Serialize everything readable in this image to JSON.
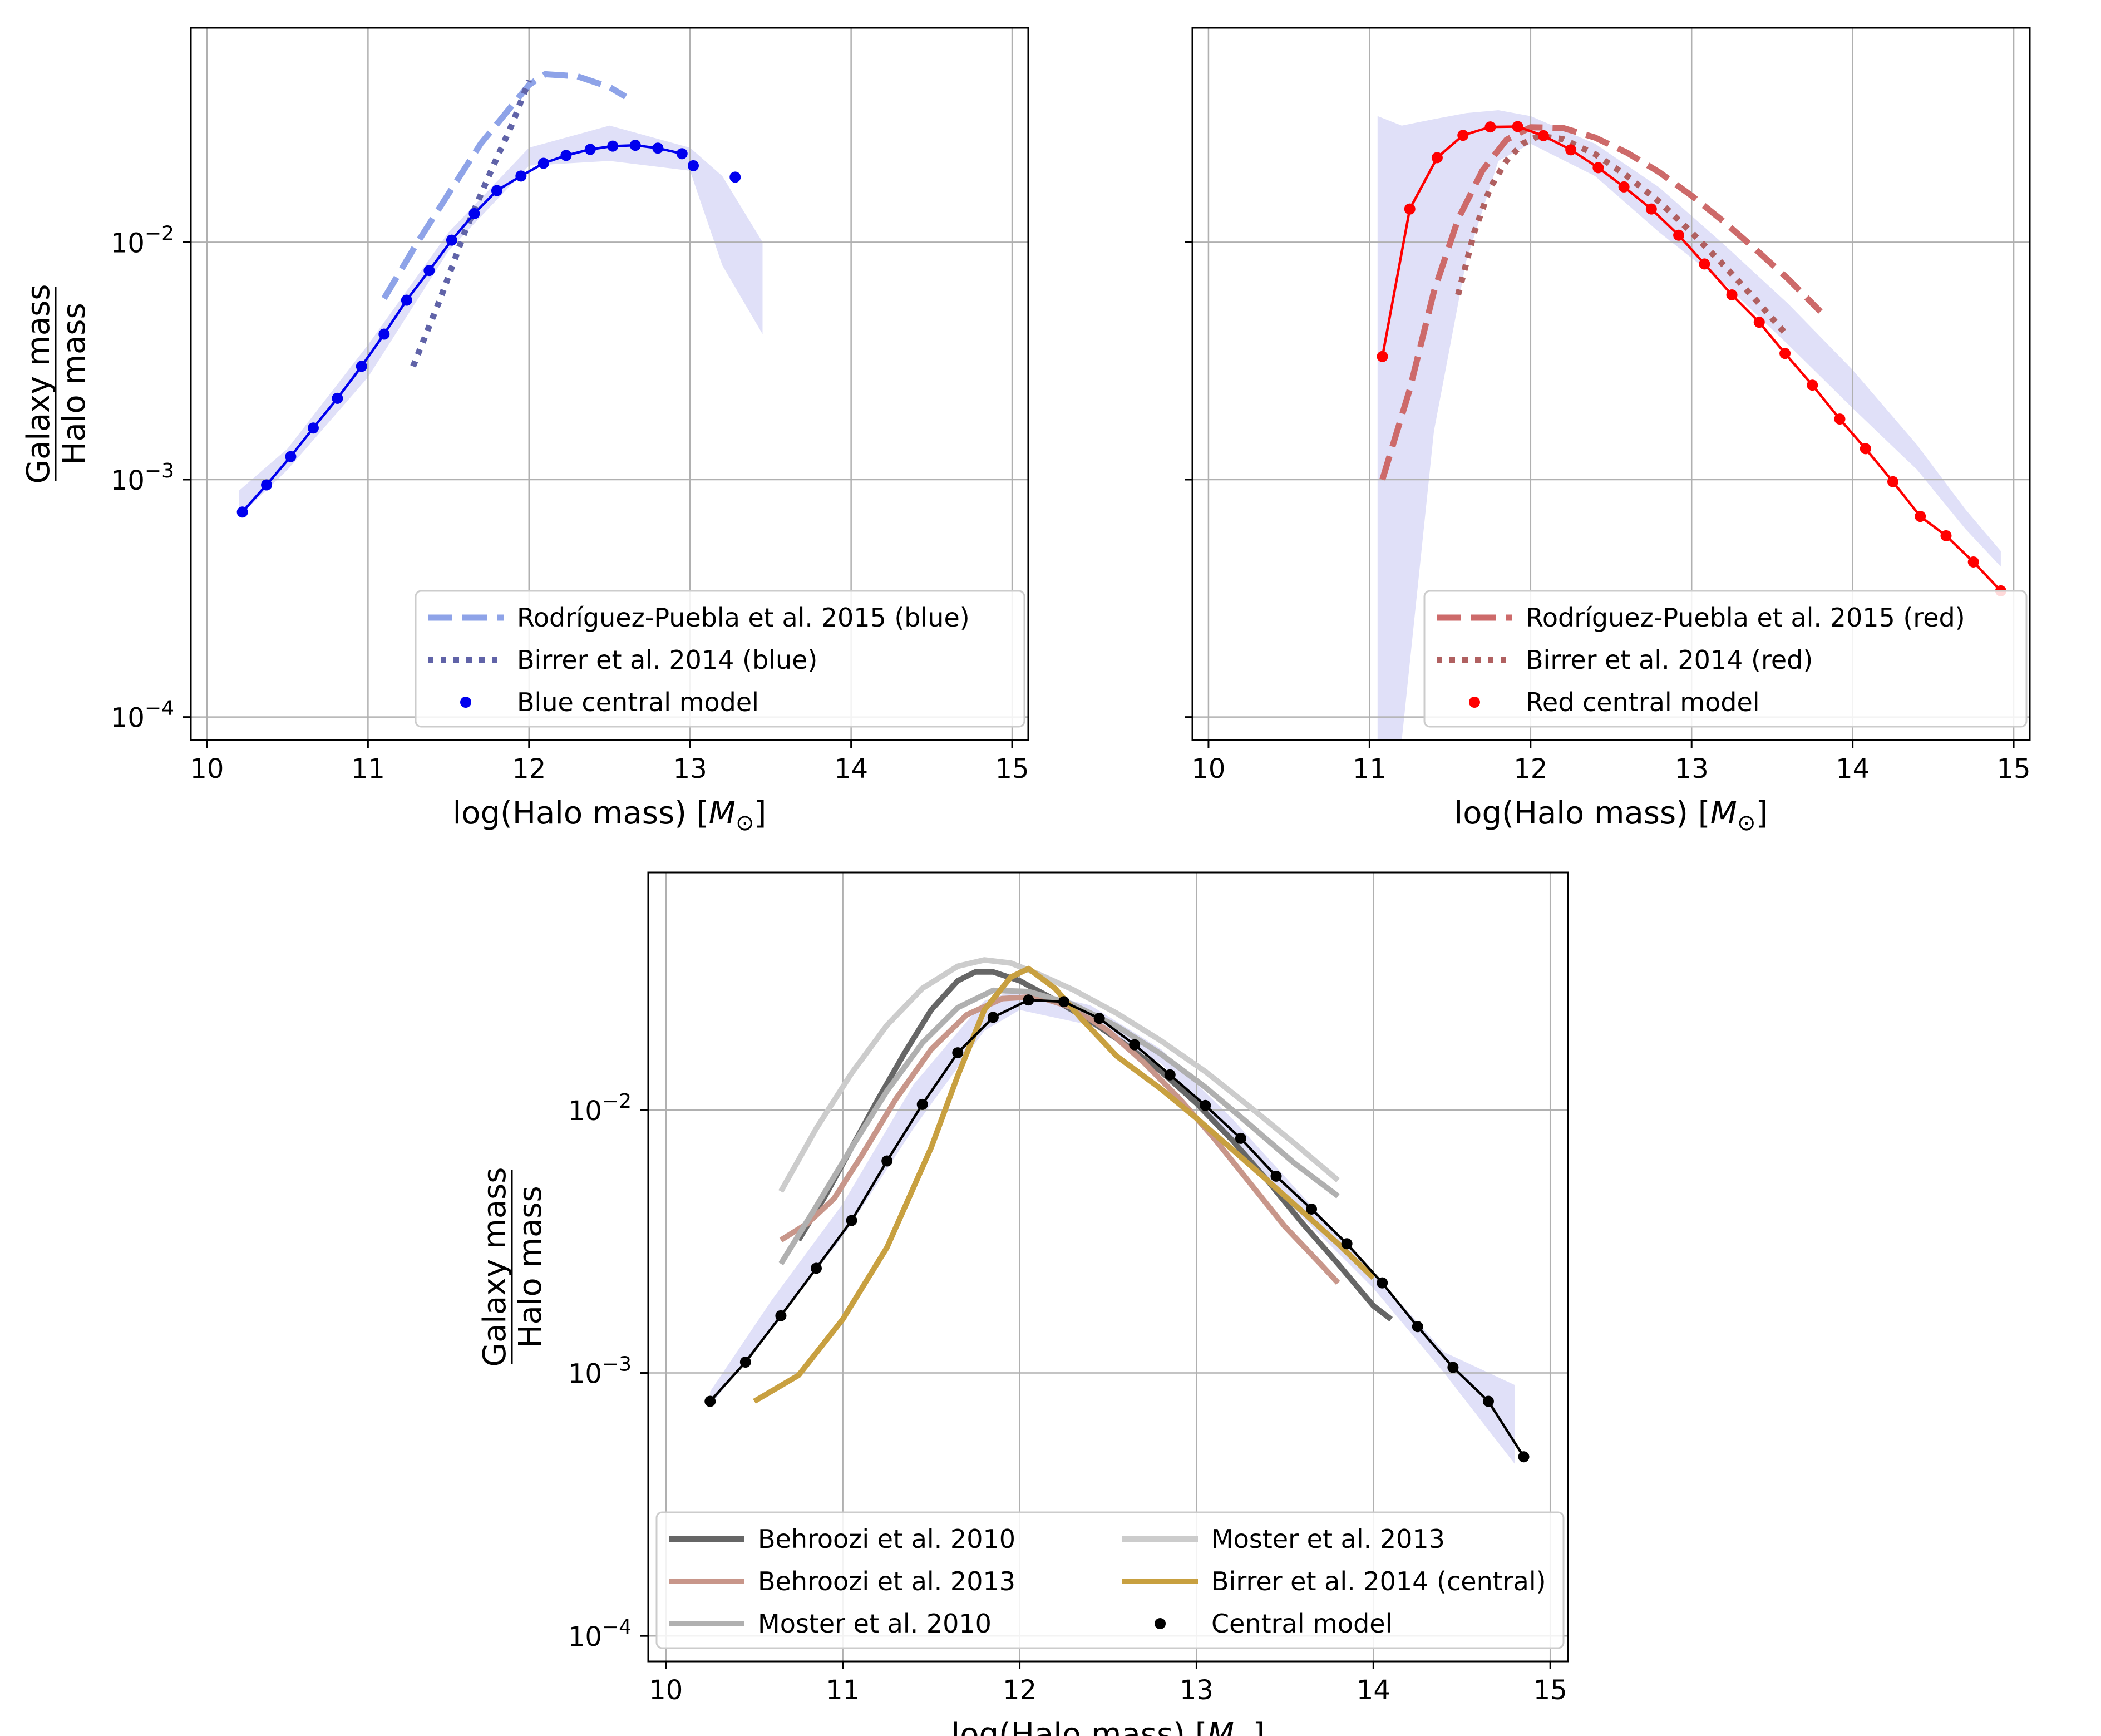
{
  "chart_data": [
    {
      "type": "line",
      "id": "blue",
      "xlabel": "log(Halo mass) [",
      "xlabel_unit": "M",
      "xlabel_sub": "⊙",
      "xlabel_end": "]",
      "ylabel_top": "Galaxy mass",
      "ylabel_bottom": "Halo mass",
      "xlim": [
        9.9,
        15.1
      ],
      "ylog": true,
      "ylim": [
        8e-05,
        0.08
      ],
      "grid": true,
      "xticks": [
        10,
        11,
        12,
        13,
        14,
        15
      ],
      "yticks": [
        {
          "value": 0.01,
          "base": "10",
          "exp": "−2"
        },
        {
          "value": 0.001,
          "base": "10",
          "exp": "−3"
        },
        {
          "value": 0.0001,
          "base": "10",
          "exp": "−4"
        }
      ],
      "band": {
        "color": "#e0e0f8",
        "x": [
          10.2,
          10.5,
          11.0,
          11.5,
          12.0,
          12.5,
          13.0,
          13.2,
          13.45
        ],
        "upper": [
          0.0009,
          0.00135,
          0.0037,
          0.011,
          0.025,
          0.031,
          0.025,
          0.019,
          0.01
        ],
        "lower": [
          0.0007,
          0.0011,
          0.0027,
          0.0092,
          0.021,
          0.022,
          0.02,
          0.008,
          0.0041
        ]
      },
      "series": [
        {
          "name": "Rodríguez-Puebla et al. 2015 (blue)",
          "style": "dashed",
          "color": "#8ea3e8",
          "x": [
            11.1,
            11.3,
            11.5,
            11.7,
            11.9,
            12.0,
            12.1,
            12.3,
            12.5,
            12.6
          ],
          "y": [
            0.0058,
            0.0098,
            0.016,
            0.026,
            0.038,
            0.046,
            0.051,
            0.05,
            0.045,
            0.041
          ]
        },
        {
          "name": "Birrer et al. 2014 (blue)",
          "style": "dotted",
          "color": "#6063a8",
          "x": [
            11.28,
            11.45,
            11.6,
            11.75,
            11.9,
            12.0
          ],
          "y": [
            0.003,
            0.0058,
            0.011,
            0.019,
            0.032,
            0.048
          ]
        },
        {
          "name": "Blue central model",
          "style": "markers-line",
          "color": "#0000ee",
          "x": [
            10.22,
            10.37,
            10.52,
            10.66,
            10.81,
            10.96,
            11.1,
            11.24,
            11.38,
            11.52,
            11.66,
            11.8,
            11.95,
            12.09,
            12.23,
            12.38,
            12.52,
            12.66,
            12.8,
            12.95,
            13.09,
            13.3
          ],
          "y": [
            0.00073,
            0.00095,
            0.00125,
            0.00165,
            0.0022,
            0.003,
            0.0041,
            0.0057,
            0.0076,
            0.0102,
            0.0132,
            0.0165,
            0.019,
            0.0215,
            0.0232,
            0.0246,
            0.0254,
            0.0256,
            0.0249,
            0.0236,
            0.0235,
            0.0212
          ],
          "connected_count": 20,
          "extra_points": [
            [
              13.02,
              0.021
            ],
            [
              13.28,
              0.0188
            ]
          ]
        }
      ]
    },
    {
      "type": "line",
      "id": "red",
      "xlabel": "log(Halo mass) [",
      "xlabel_unit": "M",
      "xlabel_sub": "⊙",
      "xlabel_end": "]",
      "xlim": [
        9.9,
        15.1
      ],
      "ylog": true,
      "ylim": [
        8e-05,
        0.08
      ],
      "grid": true,
      "xticks": [
        10,
        11,
        12,
        13,
        14,
        15
      ],
      "band": {
        "color": "#e0e0f8",
        "x": [
          11.05,
          11.2,
          11.4,
          11.6,
          11.8,
          12.0,
          12.4,
          12.8,
          13.2,
          13.6,
          14.0,
          14.4,
          14.7,
          14.92
        ],
        "upper": [
          0.034,
          0.031,
          0.033,
          0.035,
          0.036,
          0.034,
          0.026,
          0.017,
          0.0098,
          0.0055,
          0.0029,
          0.0014,
          0.00075,
          0.0005
        ],
        "lower": [
          8e-05,
          8e-05,
          0.0016,
          0.0083,
          0.022,
          0.026,
          0.019,
          0.011,
          0.0067,
          0.0037,
          0.002,
          0.0011,
          0.00062,
          0.00043
        ]
      },
      "series": [
        {
          "name": "Rodríguez-Puebla et al. 2015 (red)",
          "style": "dashed",
          "color": "#cd6a6a",
          "x": [
            11.08,
            11.25,
            11.4,
            11.55,
            11.7,
            11.85,
            12.0,
            12.2,
            12.4,
            12.6,
            12.8,
            13.0,
            13.2,
            13.4,
            13.6,
            13.8
          ],
          "y": [
            0.001,
            0.0024,
            0.0062,
            0.0125,
            0.02,
            0.027,
            0.0305,
            0.0303,
            0.0276,
            0.0238,
            0.0197,
            0.0157,
            0.0122,
            0.0093,
            0.007,
            0.0051
          ]
        },
        {
          "name": "Birrer et al. 2014 (red)",
          "style": "dotted",
          "color": "#b06060",
          "x": [
            11.55,
            11.65,
            11.75,
            11.85,
            11.95,
            12.05,
            12.2,
            12.4,
            12.6,
            12.8,
            13.0,
            13.2,
            13.4,
            13.6
          ],
          "y": [
            0.006,
            0.011,
            0.017,
            0.022,
            0.026,
            0.028,
            0.0272,
            0.0235,
            0.019,
            0.0148,
            0.011,
            0.008,
            0.0057,
            0.004
          ]
        },
        {
          "name": "Red central model",
          "style": "markers-line",
          "color": "#ff0000",
          "x": [
            11.08,
            11.25,
            11.42,
            11.58,
            11.75,
            11.92,
            12.08,
            12.25,
            12.42,
            12.58,
            12.75,
            12.92,
            13.08,
            13.25,
            13.42,
            13.58,
            13.75,
            13.92,
            14.08,
            14.25,
            14.42,
            14.58,
            14.75,
            14.92
          ],
          "y": [
            0.0033,
            0.0138,
            0.0227,
            0.0282,
            0.0306,
            0.0307,
            0.0281,
            0.0245,
            0.0206,
            0.0171,
            0.0138,
            0.0107,
            0.0081,
            0.006,
            0.0046,
            0.0034,
            0.0025,
            0.0018,
            0.00135,
            0.00098,
            0.0007,
            0.00058,
            0.00045,
            0.00034
          ]
        }
      ]
    },
    {
      "type": "line",
      "id": "central",
      "xlabel": "log(Halo mass) [",
      "xlabel_unit": "M",
      "xlabel_sub": "⊙",
      "xlabel_end": "]",
      "ylabel_top": "Galaxy mass",
      "ylabel_bottom": "Halo mass",
      "xlim": [
        9.9,
        15.1
      ],
      "ylog": true,
      "ylim": [
        8e-05,
        0.08
      ],
      "grid": true,
      "xticks": [
        10,
        11,
        12,
        13,
        14,
        15
      ],
      "yticks": [
        {
          "value": 0.01,
          "base": "10",
          "exp": "−2"
        },
        {
          "value": 0.001,
          "base": "10",
          "exp": "−3"
        },
        {
          "value": 0.0001,
          "base": "10",
          "exp": "−4"
        }
      ],
      "band": {
        "color": "#e0e0f8",
        "x": [
          10.25,
          10.6,
          11.0,
          11.4,
          11.8,
          12.0,
          12.4,
          12.8,
          13.2,
          13.6,
          14.0,
          14.4,
          14.8
        ],
        "upper": [
          0.00085,
          0.0019,
          0.0044,
          0.0125,
          0.026,
          0.029,
          0.025,
          0.017,
          0.0093,
          0.0047,
          0.0024,
          0.0012,
          0.0009
        ],
        "lower": [
          0.00075,
          0.0015,
          0.0033,
          0.0085,
          0.02,
          0.024,
          0.021,
          0.015,
          0.0078,
          0.0039,
          0.0021,
          0.001,
          0.00045
        ]
      },
      "series": [
        {
          "name": "Behroozi et al. 2010",
          "style": "solid",
          "color": "#666666",
          "x": [
            10.75,
            10.9,
            11.05,
            11.2,
            11.35,
            11.5,
            11.65,
            11.75,
            11.85,
            12.0,
            12.2,
            12.4,
            12.6,
            12.8,
            13.0,
            13.2,
            13.4,
            13.6,
            13.8,
            14.0,
            14.1
          ],
          "y": [
            0.0032,
            0.0047,
            0.0072,
            0.011,
            0.0165,
            0.024,
            0.031,
            0.0335,
            0.0335,
            0.031,
            0.0262,
            0.0218,
            0.0177,
            0.014,
            0.0106,
            0.0077,
            0.0054,
            0.0037,
            0.0026,
            0.0018,
            0.0016
          ]
        },
        {
          "name": "Behroozi et al. 2013",
          "style": "solid",
          "color": "#c8968a",
          "x": [
            10.65,
            10.8,
            10.95,
            11.1,
            11.3,
            11.5,
            11.7,
            11.9,
            12.1,
            12.3,
            12.5,
            12.7,
            12.9,
            13.1,
            13.3,
            13.5,
            13.7,
            13.8
          ],
          "y": [
            0.0032,
            0.0037,
            0.0046,
            0.0066,
            0.011,
            0.017,
            0.023,
            0.0265,
            0.027,
            0.0245,
            0.02,
            0.0152,
            0.0111,
            0.0078,
            0.0053,
            0.0036,
            0.0026,
            0.0022
          ]
        },
        {
          "name": "Moster et al. 2010",
          "style": "solid",
          "color": "#b0b0b0",
          "x": [
            10.65,
            10.85,
            11.05,
            11.25,
            11.45,
            11.65,
            11.85,
            12.05,
            12.3,
            12.55,
            12.8,
            13.05,
            13.3,
            13.55,
            13.8
          ],
          "y": [
            0.0026,
            0.0043,
            0.0072,
            0.0118,
            0.018,
            0.0245,
            0.0285,
            0.0282,
            0.0252,
            0.0208,
            0.0163,
            0.0122,
            0.0088,
            0.0063,
            0.0047
          ]
        },
        {
          "name": "Moster et al. 2013",
          "style": "solid",
          "color": "#cccccc",
          "x": [
            10.65,
            10.85,
            11.05,
            11.25,
            11.45,
            11.65,
            11.8,
            11.95,
            12.1,
            12.3,
            12.55,
            12.8,
            13.05,
            13.3,
            13.55,
            13.8
          ],
          "y": [
            0.0049,
            0.0085,
            0.0138,
            0.021,
            0.029,
            0.0352,
            0.0372,
            0.0362,
            0.033,
            0.0287,
            0.0233,
            0.0183,
            0.014,
            0.0103,
            0.0075,
            0.0054
          ]
        },
        {
          "name": "Birrer et al. 2014 (central)",
          "style": "solid",
          "color": "#c8a040",
          "x": [
            10.5,
            10.75,
            11.0,
            11.25,
            11.5,
            11.65,
            11.8,
            11.95,
            12.05,
            12.2,
            12.35,
            12.55,
            12.8,
            13.0,
            13.2,
            13.4,
            13.6,
            13.8,
            14.0
          ],
          "y": [
            0.00078,
            0.00098,
            0.0016,
            0.003,
            0.0072,
            0.0135,
            0.024,
            0.032,
            0.0345,
            0.029,
            0.0222,
            0.016,
            0.012,
            0.0093,
            0.0071,
            0.0054,
            0.0041,
            0.0031,
            0.0023
          ]
        },
        {
          "name": "Central model",
          "style": "markers-line",
          "color": "#000000",
          "x": [
            10.25,
            10.45,
            10.65,
            10.85,
            11.05,
            11.25,
            11.45,
            11.65,
            11.85,
            12.05,
            12.25,
            12.45,
            12.65,
            12.85,
            13.05,
            13.25,
            13.45,
            13.65,
            13.85,
            14.05,
            14.25,
            14.45,
            14.65,
            14.85
          ],
          "y": [
            0.00078,
            0.0011,
            0.00165,
            0.0025,
            0.0038,
            0.0064,
            0.0105,
            0.0165,
            0.0225,
            0.0262,
            0.0258,
            0.0223,
            0.0177,
            0.0136,
            0.0104,
            0.0078,
            0.0056,
            0.0042,
            0.0031,
            0.0022,
            0.0015,
            0.00105,
            0.00078,
            0.00048
          ]
        }
      ]
    }
  ]
}
